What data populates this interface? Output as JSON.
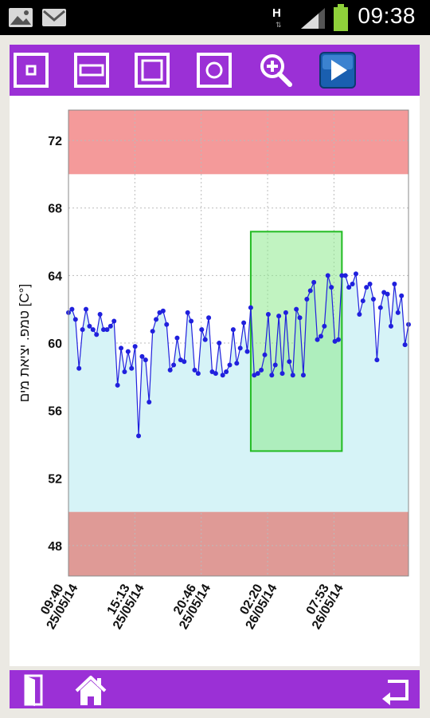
{
  "status_bar": {
    "time": "09:38",
    "network": "H",
    "network_sub": "⇅",
    "icons": [
      "gallery-icon",
      "gmail-icon",
      "signal-icon",
      "battery-icon"
    ]
  },
  "toolbar": {
    "buttons": [
      "zoom-point-icon",
      "zoom-horizontal-icon",
      "zoom-full-icon",
      "zoom-circle-icon",
      "magnifier-plus-icon",
      "play-icon"
    ],
    "accent_color": "#9b30d6"
  },
  "bottom_bar": {
    "buttons": [
      "exit-door-icon",
      "home-icon",
      "back-arrow-icon"
    ]
  },
  "chart_data": {
    "type": "line",
    "ylabel": "טמפ. יציאת מים [C°]",
    "ylim": [
      46.2,
      73.8
    ],
    "y_ticks": [
      "72",
      "68",
      "64",
      "60",
      "56",
      "52",
      "48"
    ],
    "y_tick_values": [
      72,
      68,
      64,
      60,
      56,
      52,
      48
    ],
    "x_ticks": [
      {
        "time": "09:40",
        "date": "25/05/14"
      },
      {
        "time": "15:13",
        "date": "25/05/14"
      },
      {
        "time": "20:46",
        "date": "25/05/14"
      },
      {
        "time": "02:20",
        "date": "26/05/14"
      },
      {
        "time": "07:53",
        "date": "26/05/14"
      }
    ],
    "bands": [
      {
        "name": "upper alarm",
        "from": 70.0,
        "to": 73.8,
        "color": "#f49a9a"
      },
      {
        "name": "normal range",
        "from": 50.0,
        "to": 70.0,
        "color": "#ffffff"
      },
      {
        "name": "lower alarm",
        "from": 46.2,
        "to": 50.0,
        "color": "#df9a96"
      }
    ],
    "fill_color": "#d6f3f7",
    "line_color": "#2020dd",
    "highlight": {
      "from_index": 52,
      "to_index": 78,
      "y_from": 53.6,
      "y_to": 66.6,
      "color": "#8ee98e"
    },
    "grid": true,
    "x_span": 100,
    "series": [
      {
        "values": [
          61.8,
          62.0,
          61.4,
          58.5,
          60.8,
          62.0,
          61.0,
          60.8,
          60.5,
          61.7,
          60.8,
          60.8,
          61.0,
          61.3,
          57.5,
          59.7,
          58.3,
          59.5,
          58.5,
          59.8,
          54.5,
          59.2,
          59.0,
          56.5,
          60.7,
          61.4,
          61.8,
          61.9,
          61.1,
          58.4,
          58.7,
          60.3,
          59.0,
          58.9,
          61.8,
          61.3,
          58.4,
          58.2,
          60.8,
          60.2,
          61.5,
          58.3,
          58.2,
          60.0,
          58.1,
          58.3,
          58.7,
          60.8,
          58.8,
          59.7,
          61.2,
          59.5,
          62.1,
          58.1,
          58.2,
          58.4,
          59.3,
          61.7,
          58.1,
          58.7,
          61.6,
          58.2,
          61.8,
          58.9,
          58.1,
          62.0,
          61.5,
          58.1,
          62.6,
          63.1,
          63.6,
          60.2,
          60.4,
          61.0,
          64.0,
          63.3,
          60.1,
          60.2,
          64.0,
          64.0,
          63.3,
          63.5,
          64.1,
          61.7,
          62.5,
          63.3,
          63.5,
          62.6,
          59.0,
          62.1,
          63.0,
          62.9,
          61.0,
          63.5,
          61.8,
          62.8,
          59.9,
          61.1
        ]
      }
    ]
  }
}
